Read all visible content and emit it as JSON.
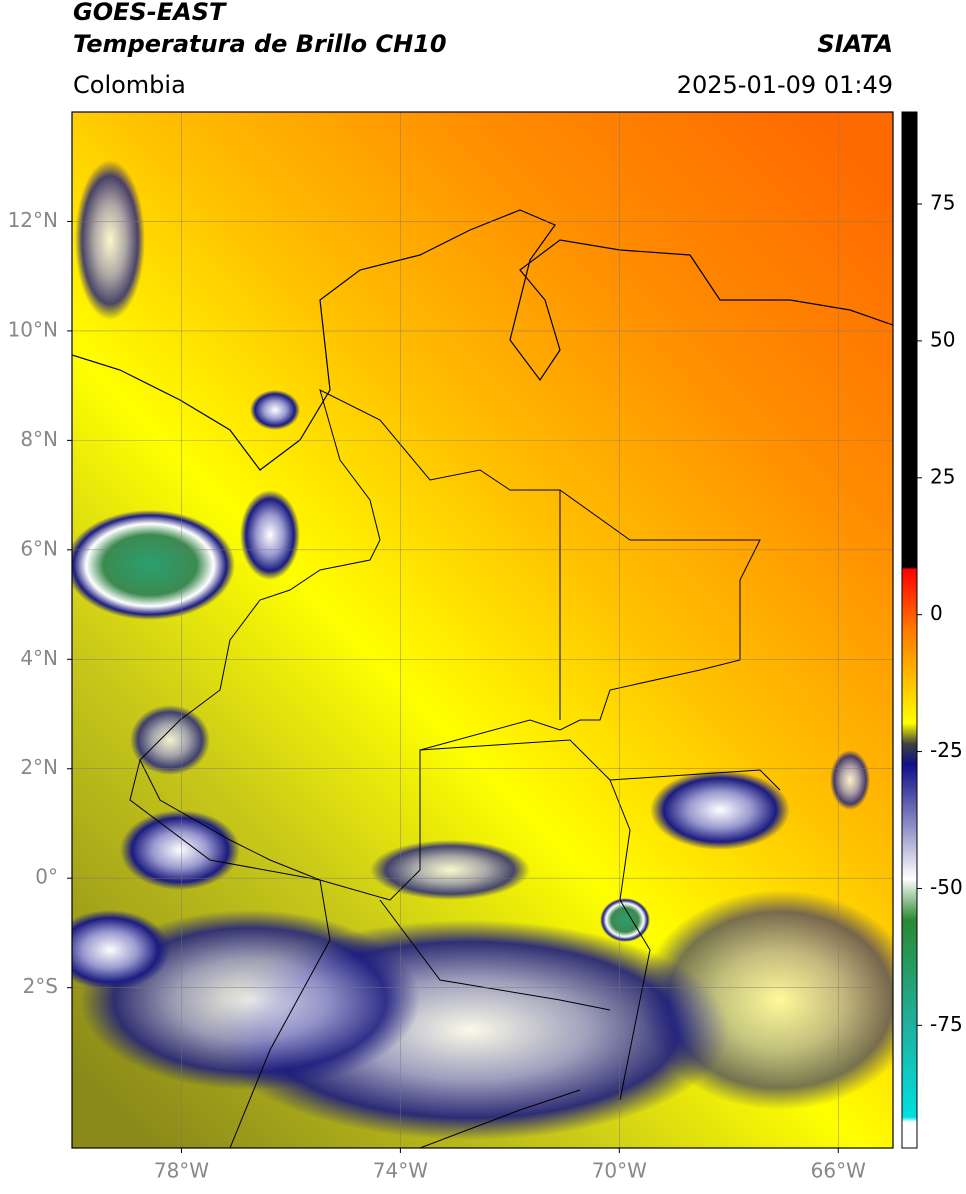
{
  "header": {
    "title": "GOES-EAST",
    "subtitle": "Temperatura de Brillo CH10",
    "source": "SIATA",
    "region": "Colombia",
    "datetime": "2025-01-09 01:49"
  },
  "map": {
    "latlim": [
      -4.93,
      14.0
    ],
    "lonlim": [
      -80.0,
      -65.0
    ],
    "lat_ticks": [
      {
        "value": 12,
        "label": "12°N"
      },
      {
        "value": 10,
        "label": "10°N"
      },
      {
        "value": 8,
        "label": "8°N"
      },
      {
        "value": 6,
        "label": "6°N"
      },
      {
        "value": 4,
        "label": "4°N"
      },
      {
        "value": 2,
        "label": "2°N"
      },
      {
        "value": 0,
        "label": "0°"
      },
      {
        "value": -2,
        "label": "2°S"
      }
    ],
    "lon_ticks": [
      {
        "value": -78,
        "label": "78°W"
      },
      {
        "value": -74,
        "label": "74°W"
      },
      {
        "value": -70,
        "label": "70°W"
      },
      {
        "value": -66,
        "label": "66°W"
      }
    ],
    "grid": true
  },
  "colorbar": {
    "lim": [
      -97.4,
      91.8
    ],
    "ticks": [
      75,
      50,
      25,
      0,
      -25,
      -50,
      -75
    ]
  }
}
